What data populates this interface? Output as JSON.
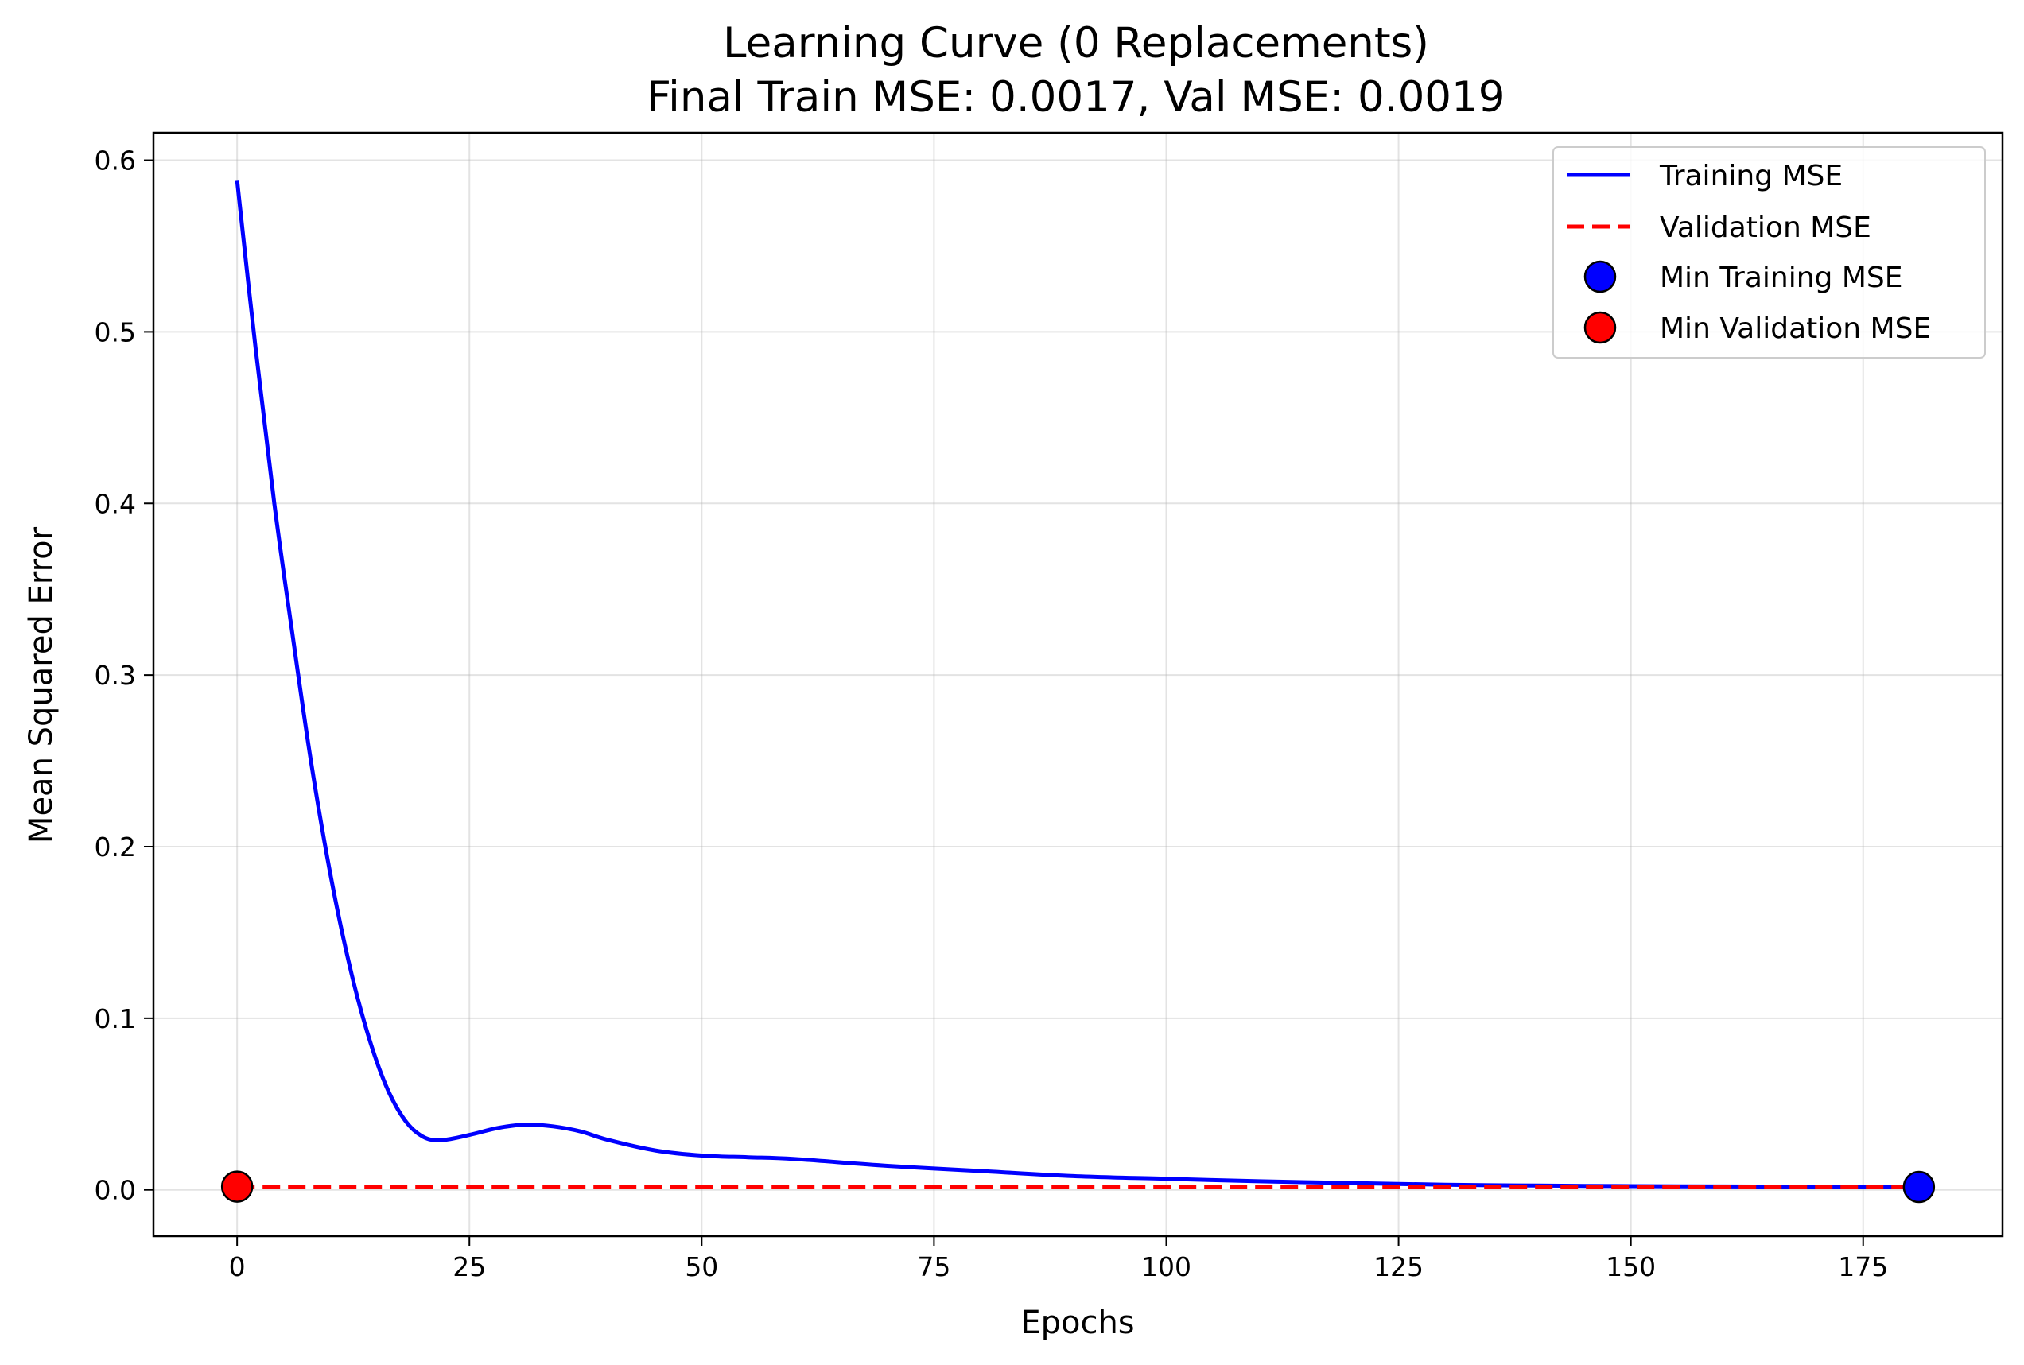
{
  "chart_data": {
    "type": "line",
    "title_line1": "Learning Curve (0 Replacements)",
    "title_line2": "Final Train MSE: 0.0017, Val MSE: 0.0019",
    "xlabel": "Epochs",
    "ylabel": "Mean Squared Error",
    "xlim": [
      -9,
      190
    ],
    "ylim": [
      -0.027,
      0.616
    ],
    "xticks": [
      0,
      25,
      50,
      75,
      100,
      125,
      150,
      175
    ],
    "yticks": [
      0.0,
      0.1,
      0.2,
      0.3,
      0.4,
      0.5,
      0.6
    ],
    "xtick_labels": [
      "0",
      "25",
      "50",
      "75",
      "100",
      "125",
      "150",
      "175"
    ],
    "ytick_labels": [
      "0.0",
      "0.1",
      "0.2",
      "0.3",
      "0.4",
      "0.5",
      "0.6"
    ],
    "grid": true,
    "legend_position": "top-right",
    "series": [
      {
        "name": "Training MSE",
        "style": "solid",
        "color": "#0000ff",
        "x": [
          0,
          2,
          4,
          6,
          8,
          10,
          12,
          14,
          16,
          18,
          20,
          22,
          25,
          28,
          31,
          34,
          37,
          40,
          45,
          50,
          55,
          60,
          70,
          80,
          90,
          100,
          110,
          120,
          130,
          140,
          150,
          160,
          170,
          181
        ],
        "values": [
          0.588,
          0.49,
          0.4,
          0.322,
          0.248,
          0.185,
          0.133,
          0.092,
          0.061,
          0.041,
          0.031,
          0.029,
          0.032,
          0.036,
          0.038,
          0.037,
          0.034,
          0.029,
          0.023,
          0.02,
          0.019,
          0.018,
          0.014,
          0.011,
          0.008,
          0.0065,
          0.005,
          0.004,
          0.003,
          0.0025,
          0.0022,
          0.002,
          0.0018,
          0.0017
        ]
      },
      {
        "name": "Validation MSE",
        "style": "dashed",
        "color": "#ff0000",
        "x": [
          0,
          181
        ],
        "values": [
          0.0019,
          0.0019
        ]
      }
    ],
    "markers": [
      {
        "name": "Min Training MSE",
        "color": "#0000ff",
        "x": 181,
        "y": 0.0017
      },
      {
        "name": "Min Validation MSE",
        "color": "#ff0000",
        "x": 0,
        "y": 0.0019
      }
    ]
  }
}
